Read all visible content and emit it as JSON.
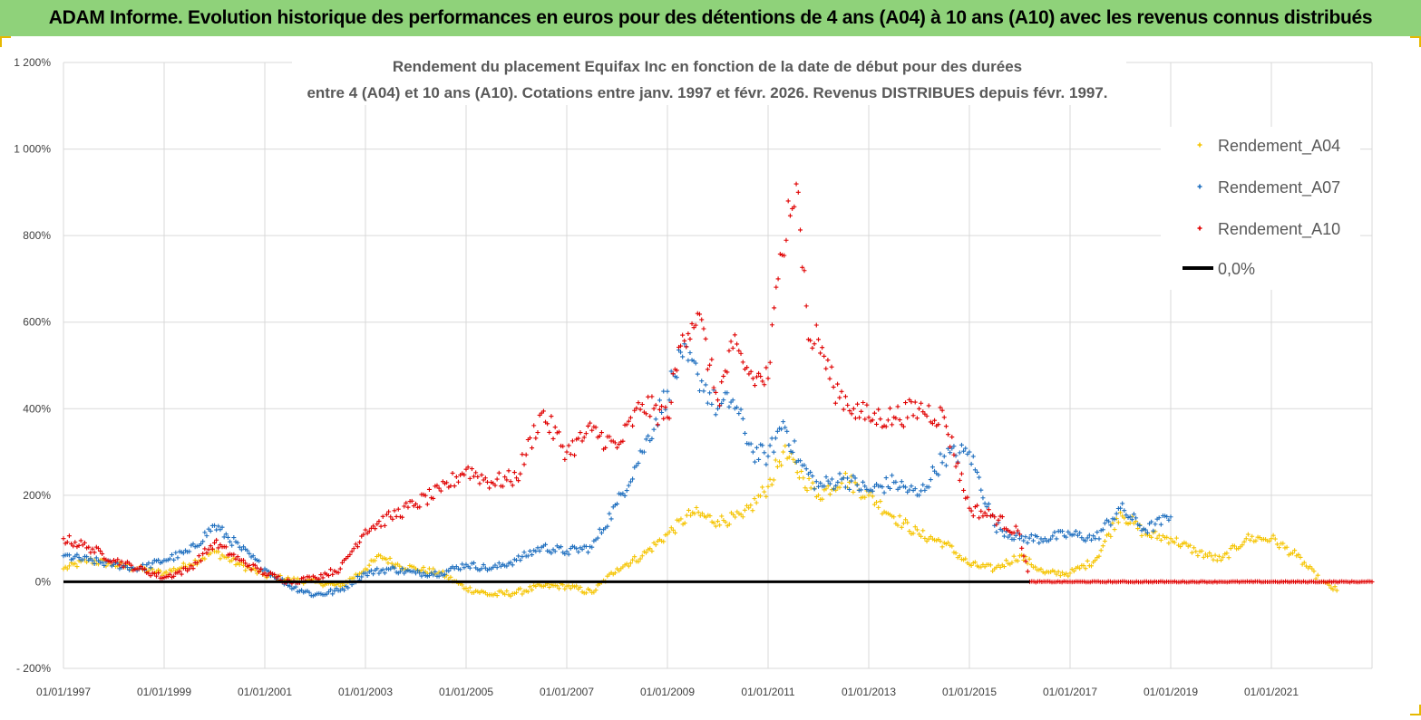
{
  "banner": {
    "title": "ADAM Informe. Evolution historique des performances en euros pour des détentions de 4 ans (A04) à 10 ans (A10) avec les revenus connus distribués"
  },
  "colors": {
    "banner_bg": "#8fd27a",
    "a04": "#f5c400",
    "a07": "#1f6fbf",
    "a10": "#e00000",
    "zero_line": "#000000",
    "grid": "#d9d9d9"
  },
  "chart_data": {
    "type": "scatter",
    "title_line1": "Rendement du placement Equifax Inc en fonction de la date de début pour des durées",
    "title_line2": "entre 4 (A04) et 10 ans (A10).  Cotations entre janv. 1997 et févr. 2026. Revenus DISTRIBUES depuis févr. 1997.",
    "ylim": [
      -200,
      1200
    ],
    "y_ticks": [
      "- 200%",
      "0%",
      "200%",
      "400%",
      "600%",
      "800%",
      "1 000%",
      "1 200%"
    ],
    "x_range": [
      1997.0,
      2023.0
    ],
    "x_ticks": [
      "01/01/1997",
      "01/01/1999",
      "01/01/2001",
      "01/01/2003",
      "01/01/2005",
      "01/01/2007",
      "01/01/2009",
      "01/01/2011",
      "01/01/2013",
      "01/01/2015",
      "01/01/2017",
      "01/01/2019",
      "01/01/2021"
    ],
    "legend_position": "top-right",
    "legend": [
      "Rendement_A04",
      "Rendement_A07",
      "Rendement_A10",
      "0,0%"
    ],
    "series": [
      {
        "name": "Rendement_A04",
        "x": [
          1997.0,
          1997.5,
          1998.0,
          1998.5,
          1999.0,
          1999.5,
          2000.0,
          2000.5,
          2001.0,
          2001.5,
          2002.0,
          2002.5,
          2003.0,
          2003.3,
          2003.6,
          2004.0,
          2004.5,
          2005.0,
          2005.5,
          2006.0,
          2006.5,
          2007.0,
          2007.5,
          2008.0,
          2008.5,
          2009.0,
          2009.5,
          2010.0,
          2010.5,
          2011.0,
          2011.3,
          2011.7,
          2012.0,
          2012.5,
          2013.0,
          2013.5,
          2014.0,
          2014.5,
          2015.0,
          2015.5,
          2016.0,
          2016.5,
          2017.0,
          2017.5,
          2018.0,
          2018.5,
          2019.0,
          2019.5,
          2020.0,
          2020.5,
          2021.0,
          2021.5,
          2022.0,
          2022.3
        ],
        "y": [
          30,
          50,
          40,
          30,
          20,
          40,
          70,
          40,
          15,
          5,
          0,
          -10,
          30,
          60,
          40,
          30,
          20,
          -15,
          -30,
          -25,
          -10,
          -10,
          -25,
          30,
          60,
          110,
          160,
          140,
          150,
          220,
          300,
          240,
          200,
          240,
          200,
          150,
          110,
          90,
          40,
          30,
          60,
          20,
          20,
          50,
          160,
          110,
          100,
          70,
          50,
          100,
          100,
          60,
          0,
          -20
        ]
      },
      {
        "name": "Rendement_A07",
        "x": [
          1997.0,
          1997.5,
          1998.0,
          1998.5,
          1999.0,
          1999.5,
          2000.0,
          2000.5,
          2001.0,
          2001.5,
          2002.0,
          2002.5,
          2003.0,
          2003.5,
          2004.0,
          2004.5,
          2005.0,
          2005.5,
          2006.0,
          2006.5,
          2007.0,
          2007.5,
          2008.0,
          2008.5,
          2009.0,
          2009.3,
          2009.6,
          2010.0,
          2010.3,
          2010.7,
          2011.0,
          2011.3,
          2011.6,
          2012.0,
          2012.5,
          2013.0,
          2013.5,
          2014.0,
          2014.5,
          2015.0,
          2015.5,
          2016.0,
          2016.5,
          2017.0,
          2017.5,
          2018.0,
          2018.5,
          2019.0
        ],
        "y": [
          60,
          50,
          40,
          30,
          50,
          70,
          130,
          80,
          30,
          -10,
          -30,
          -20,
          20,
          30,
          20,
          20,
          40,
          30,
          50,
          80,
          70,
          80,
          180,
          300,
          440,
          520,
          480,
          400,
          420,
          300,
          290,
          370,
          280,
          220,
          240,
          210,
          230,
          200,
          290,
          300,
          130,
          100,
          100,
          110,
          100,
          170,
          120,
          150
        ]
      },
      {
        "name": "Rendement_A10",
        "x": [
          1997.0,
          1997.5,
          1998.0,
          1998.5,
          1999.0,
          1999.5,
          2000.0,
          2000.5,
          2001.0,
          2001.5,
          2002.0,
          2002.5,
          2003.0,
          2003.5,
          2004.0,
          2004.5,
          2005.0,
          2005.5,
          2006.0,
          2006.5,
          2007.0,
          2007.5,
          2008.0,
          2008.5,
          2009.0,
          2009.3,
          2009.6,
          2010.0,
          2010.3,
          2010.7,
          2011.0,
          2011.2,
          2011.4,
          2011.6,
          2011.8,
          2012.0,
          2012.3,
          2012.7,
          2013.0,
          2013.5,
          2014.0,
          2014.5,
          2015.0,
          2015.5,
          2016.0,
          2016.2,
          2017.0,
          2018.0,
          2019.0,
          2020.0,
          2021.0,
          2022.0,
          2023.0
        ],
        "y": [
          100,
          80,
          50,
          30,
          10,
          30,
          90,
          50,
          20,
          0,
          10,
          30,
          120,
          150,
          180,
          210,
          260,
          230,
          240,
          390,
          300,
          350,
          310,
          410,
          380,
          570,
          620,
          420,
          540,
          470,
          470,
          700,
          880,
          900,
          560,
          560,
          450,
          400,
          380,
          380,
          400,
          380,
          170,
          150,
          110,
          0,
          0,
          0,
          0,
          0,
          0,
          0,
          0
        ]
      },
      {
        "name": "0,0%",
        "x": [
          1997.0,
          2016.2
        ],
        "y": [
          0,
          0
        ]
      }
    ]
  }
}
